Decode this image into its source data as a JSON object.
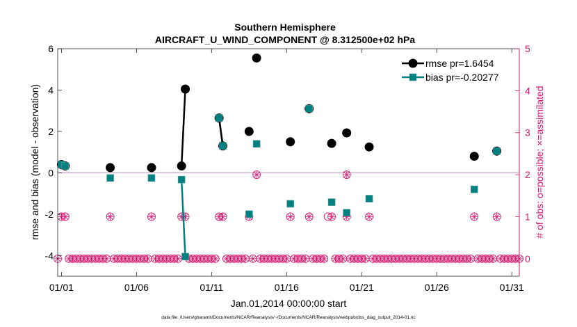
{
  "chart_data": {
    "type": "line",
    "title_line1": "Southern Hemisphere",
    "title_line2": "AIRCRAFT_U_WIND_COMPONENT @ 8.312500e+02 hPa",
    "xlabel": "Jan.01,2014 00:00:00 start",
    "ylabel": "rmse and bias (model - observation)",
    "y2label": "# of obs: o=possible; ×=assimilated",
    "footnote": "data file: /Users/gharamti/Documents/NCAR/Reanalysis/~/Documents/NCAR/Reanalysis/webpub/obs_diag_output_2014-01.nc",
    "xlim": [
      0.75,
      31.5
    ],
    "ylim": [
      -5,
      6
    ],
    "y2lim": [
      -0.4167,
      5
    ],
    "x_ticks": [
      1,
      6,
      11,
      16,
      21,
      26,
      31
    ],
    "x_tick_labels": [
      "01/01",
      "01/06",
      "01/11",
      "01/16",
      "01/21",
      "01/26",
      "01/31"
    ],
    "y_ticks": [
      -4,
      -2,
      0,
      2,
      4,
      6
    ],
    "y_tick_labels": [
      "-4",
      "-2",
      "0",
      "2",
      "4",
      "6"
    ],
    "y2_ticks": [
      0,
      1,
      2,
      3,
      4,
      5
    ],
    "y2_tick_labels": [
      "0",
      "1",
      "2",
      "3",
      "4",
      "5"
    ],
    "colors": {
      "rmse": "#000000",
      "bias": "#008080",
      "count": "#d6186f",
      "zero_line": "#c8a2c8"
    },
    "series": [
      {
        "name": "rmse",
        "legend": "rmse pr=1.6454",
        "x": [
          1.0,
          1.25,
          4.25,
          7.0,
          9.0,
          9.25,
          11.5,
          11.75,
          13.5,
          14.0,
          16.25,
          17.5,
          19.0,
          20.0,
          21.5,
          28.5,
          30.0
        ],
        "values": [
          0.4,
          0.33,
          0.25,
          0.25,
          0.33,
          4.05,
          2.65,
          1.3,
          2.0,
          5.55,
          1.5,
          3.1,
          1.42,
          1.93,
          1.25,
          0.8,
          1.05
        ],
        "segments": [
          [
            0,
            1
          ],
          [
            4,
            5
          ],
          [
            6,
            7
          ]
        ]
      },
      {
        "name": "bias",
        "legend": "bias pr=-0.20277",
        "x": [
          1.0,
          1.25,
          4.25,
          7.0,
          9.0,
          9.25,
          11.5,
          11.75,
          13.5,
          14.0,
          16.25,
          17.5,
          19.0,
          20.0,
          21.5,
          28.5,
          30.0
        ],
        "values": [
          0.4,
          0.33,
          -0.25,
          -0.25,
          -0.33,
          -4.05,
          2.65,
          1.3,
          -2.0,
          1.4,
          -1.5,
          3.1,
          -1.42,
          -1.93,
          -1.25,
          -0.8,
          1.05
        ],
        "segments": [
          [
            0,
            1
          ],
          [
            4,
            5
          ],
          [
            6,
            7
          ]
        ]
      }
    ],
    "obs_count": {
      "possible_one": [
        1.0,
        1.25,
        4.25,
        7.0,
        9.0,
        9.25,
        11.5,
        11.75,
        13.5,
        16.25,
        17.5,
        18.75,
        19.0,
        20.0,
        21.5,
        28.5,
        30.0
      ],
      "assimilated_one": [
        1.0,
        1.25,
        4.25,
        7.0,
        9.0,
        9.25,
        11.5,
        11.75,
        13.5,
        16.25,
        17.5,
        19.0,
        20.0,
        21.5,
        28.5,
        30.0
      ],
      "possible_two": [
        14.0,
        20.0
      ],
      "assimilated_two": [
        14.0,
        20.0
      ],
      "zero_start": 0.75,
      "zero_end": 31.5,
      "zero_step": 0.25
    }
  }
}
